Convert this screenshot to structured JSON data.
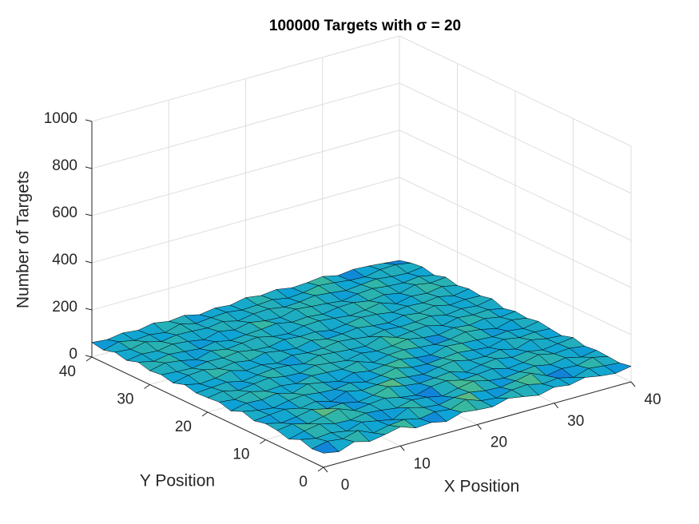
{
  "chart_data": {
    "type": "surface",
    "title": "100000 Targets with σ = 20",
    "xlabel": "X Position",
    "ylabel": "Y Position",
    "zlabel": "Number of Targets",
    "x": [
      0,
      2,
      4,
      6,
      8,
      10,
      12,
      14,
      16,
      18,
      20,
      22,
      24,
      26,
      28,
      30,
      32,
      34,
      36,
      38,
      40
    ],
    "y": [
      0,
      2,
      4,
      6,
      8,
      10,
      12,
      14,
      16,
      18,
      20,
      22,
      24,
      26,
      28,
      30,
      32,
      34,
      36,
      38,
      40
    ],
    "z": [
      [
        60,
        48,
        72,
        55,
        66,
        81,
        58,
        63,
        49,
        70,
        62,
        57,
        75,
        64,
        52,
        68,
        59,
        73,
        61,
        54,
        66
      ],
      [
        55,
        69,
        61,
        78,
        50,
        64,
        71,
        56,
        67,
        59,
        83,
        60,
        53,
        69,
        74,
        58,
        65,
        50,
        70,
        63,
        57
      ],
      [
        71,
        58,
        64,
        52,
        73,
        60,
        47,
        79,
        62,
        55,
        68,
        72,
        61,
        57,
        66,
        80,
        52,
        64,
        59,
        75,
        61
      ],
      [
        49,
        66,
        77,
        61,
        58,
        69,
        63,
        54,
        71,
        64,
        51,
        66,
        78,
        62,
        55,
        63,
        70,
        57,
        68,
        53,
        64
      ],
      [
        63,
        72,
        55,
        68,
        82,
        57,
        66,
        73,
        58,
        49,
        67,
        74,
        59,
        65,
        71,
        54,
        61,
        76,
        62,
        67,
        58
      ],
      [
        68,
        53,
        61,
        74,
        59,
        65,
        52,
        62,
        80,
        66,
        58,
        63,
        70,
        51,
        64,
        72,
        59,
        66,
        55,
        63,
        71
      ],
      [
        57,
        64,
        70,
        56,
        67,
        48,
        73,
        59,
        65,
        71,
        62,
        55,
        67,
        76,
        60,
        58,
        69,
        53,
        74,
        61,
        56
      ],
      [
        73,
        60,
        52,
        65,
        71,
        62,
        58,
        68,
        54,
        63,
        77,
        61,
        57,
        64,
        69,
        62,
        55,
        71,
        60,
        66,
        62
      ],
      [
        52,
        67,
        63,
        72,
        55,
        76,
        64,
        51,
        69,
        58,
        65,
        72,
        60,
        54,
        73,
        67,
        63,
        58,
        65,
        57,
        69
      ],
      [
        66,
        59,
        74,
        58,
        63,
        54,
        69,
        65,
        61,
        75,
        53,
        67,
        71,
        63,
        57,
        61,
        74,
        66,
        52,
        70,
        60
      ],
      [
        61,
        71,
        56,
        66,
        73,
        61,
        57,
        72,
        64,
        56,
        69,
        60,
        64,
        74,
        62,
        56,
        68,
        61,
        71,
        59,
        65
      ],
      [
        58,
        63,
        68,
        53,
        62,
        70,
        66,
        55,
        73,
        67,
        61,
        57,
        79,
        58,
        66,
        71,
        54,
        69,
        63,
        67,
        54
      ],
      [
        70,
        55,
        61,
        75,
        57,
        64,
        52,
        68,
        60,
        62,
        72,
        65,
        56,
        67,
        61,
        64,
        72,
        57,
        66,
        60,
        72
      ],
      [
        54,
        68,
        73,
        60,
        69,
        58,
        74,
        63,
        56,
        71,
        59,
        63,
        70,
        61,
        55,
        69,
        60,
        73,
        58,
        64,
        61
      ],
      [
        65,
        60,
        57,
        67,
        64,
        72,
        61,
        57,
        70,
        64,
        66,
        54,
        62,
        73,
        68,
        58,
        66,
        62,
        70,
        56,
        67
      ],
      [
        59,
        74,
        65,
        52,
        71,
        60,
        67,
        74,
        59,
        53,
        68,
        71,
        64,
        57,
        63,
        75,
        53,
        67,
        61,
        72,
        58
      ],
      [
        72,
        57,
        69,
        63,
        56,
        68,
        55,
        62,
        66,
        73,
        60,
        65,
        58,
        69,
        71,
        60,
        68,
        56,
        74,
        63,
        70
      ],
      [
        56,
        65,
        60,
        71,
        64,
        53,
        70,
        58,
        72,
        61,
        57,
        74,
        67,
        62,
        54,
        66,
        71,
        63,
        59,
        68,
        55
      ],
      [
        67,
        62,
        75,
        58,
        68,
        66,
        61,
        71,
        55,
        67,
        70,
        59,
        63,
        72,
        65,
        57,
        64,
        70,
        62,
        58,
        66
      ],
      [
        53,
        70,
        58,
        64,
        55,
        73,
        57,
        64,
        68,
        60,
        63,
        68,
        56,
        61,
        73,
        67,
        59,
        55,
        68,
        71,
        60
      ],
      [
        62,
        56,
        66,
        59,
        72,
        61,
        68,
        53,
        63,
        57,
        71,
        62,
        69,
        58,
        62,
        70,
        56,
        64,
        60,
        54,
        47
      ]
    ],
    "xlim": [
      0,
      40
    ],
    "ylim": [
      0,
      40
    ],
    "zlim": [
      0,
      1000
    ],
    "xticks": [
      0,
      10,
      20,
      30,
      40
    ],
    "yticks": [
      0,
      10,
      20,
      30,
      40
    ],
    "zticks": [
      0,
      200,
      400,
      600,
      800,
      1000
    ],
    "grid": true,
    "colormap": [
      "#352a87",
      "#1462d9",
      "#0ea5d6",
      "#38b99e",
      "#a5be4f",
      "#f9fb0e"
    ],
    "edge_color": "#000000"
  }
}
